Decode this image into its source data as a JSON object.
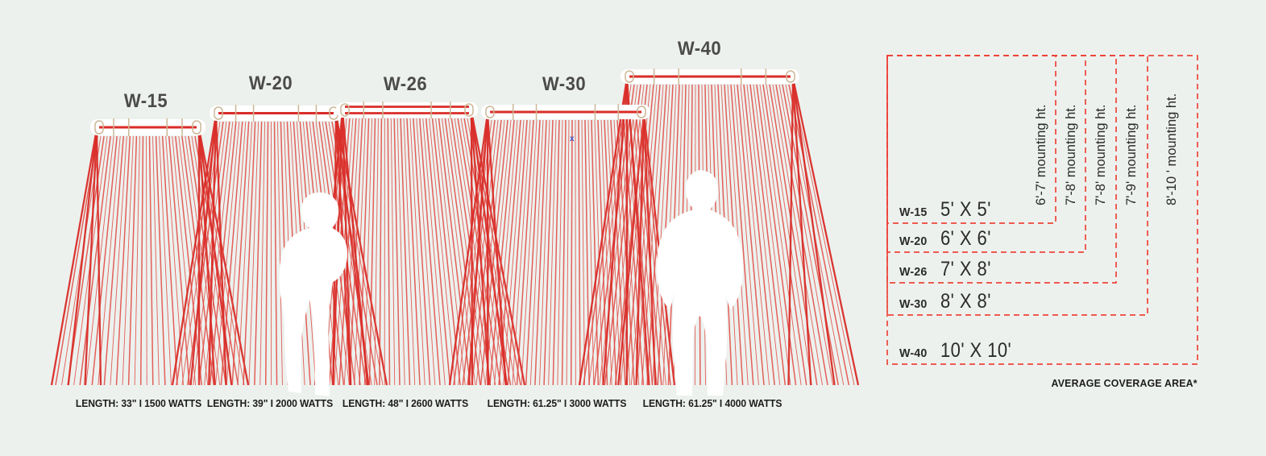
{
  "title": "Infrared heater coverage diagram",
  "colors": {
    "background": "#edf1ee",
    "red_thin": "#e2453e",
    "red_thick": "#d92d28",
    "tan": "#cbb795",
    "housing_white": "#ffffff",
    "title_gray": "#4b4b49",
    "text_black": "#1d1d1b",
    "table_dash_red": "#ee4439",
    "table_text": "#2b2b29",
    "blue_marker": "#4053c8"
  },
  "heaters": [
    {
      "model": "W-15",
      "spec": "LENGTH: 33\" I 1500 WATTS"
    },
    {
      "model": "W-20",
      "spec": "LENGTH: 39\" I 2000 WATTS"
    },
    {
      "model": "W-26",
      "spec": "LENGTH: 48\" I 2600 WATTS"
    },
    {
      "model": "W-30",
      "spec": "LENGTH: 61.25\" I 3000 WATTS"
    },
    {
      "model": "W-40",
      "spec": "LENGTH: 61.25\" I 4000 WATTS"
    }
  ],
  "coverage_table": {
    "rows": [
      {
        "model": "W-15",
        "area": "5' X 5'",
        "mounting": "6'-7' mounting ht."
      },
      {
        "model": "W-20",
        "area": "6' X 6'",
        "mounting": "7'-8' mounting ht."
      },
      {
        "model": "W-26",
        "area": "7' X 8'",
        "mounting": "7'-8' mounting ht."
      },
      {
        "model": "W-30",
        "area": "8' X 8'",
        "mounting": "7'-9' mounting ht."
      },
      {
        "model": "W-40",
        "area": "10' X 10'",
        "mounting": "8'-10 ' mounting ht."
      }
    ],
    "footnote": "AVERAGE COVERAGE AREA*"
  },
  "cursor_marker": "x"
}
